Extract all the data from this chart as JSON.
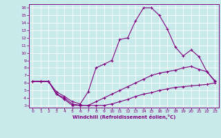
{
  "xlabel": "Windchill (Refroidissement éolien,°C)",
  "xlim": [
    -0.5,
    23.5
  ],
  "ylim": [
    2.7,
    16.5
  ],
  "xticks": [
    0,
    1,
    2,
    3,
    4,
    5,
    6,
    7,
    8,
    9,
    10,
    11,
    12,
    13,
    14,
    15,
    16,
    17,
    18,
    19,
    20,
    21,
    22,
    23
  ],
  "yticks": [
    3,
    4,
    5,
    6,
    7,
    8,
    9,
    10,
    11,
    12,
    13,
    14,
    15,
    16
  ],
  "bg_color": "#c8eaea",
  "grid_color": "#ffffff",
  "line_color": "#800080",
  "line1_x": [
    0,
    1,
    2,
    3,
    4,
    5,
    6,
    7,
    8,
    9,
    10,
    11,
    12,
    13,
    14,
    15,
    16,
    17,
    18,
    19,
    20,
    21,
    22,
    23
  ],
  "line1_y": [
    6.2,
    6.2,
    6.2,
    4.5,
    4.0,
    3.2,
    3.0,
    3.0,
    3.0,
    3.0,
    3.2,
    3.5,
    3.8,
    4.2,
    4.5,
    4.7,
    5.0,
    5.2,
    5.4,
    5.5,
    5.6,
    5.7,
    5.8,
    6.0
  ],
  "line2_x": [
    0,
    1,
    2,
    3,
    4,
    5,
    6,
    7,
    8,
    9,
    10,
    11,
    12,
    13,
    14,
    15,
    16,
    17,
    18,
    19,
    20,
    21,
    22,
    23
  ],
  "line2_y": [
    6.2,
    6.2,
    6.2,
    4.8,
    4.2,
    3.5,
    3.2,
    4.8,
    8.0,
    8.5,
    9.0,
    11.8,
    12.0,
    14.3,
    16.0,
    16.0,
    15.0,
    13.2,
    10.8,
    9.6,
    10.4,
    9.5,
    7.5,
    6.3
  ],
  "line3_x": [
    0,
    1,
    2,
    3,
    4,
    5,
    6,
    7,
    8,
    9,
    10,
    11,
    12,
    13,
    14,
    15,
    16,
    17,
    18,
    19,
    20,
    21,
    22,
    23
  ],
  "line3_y": [
    6.2,
    6.2,
    6.2,
    4.5,
    3.8,
    3.0,
    3.0,
    3.0,
    3.5,
    4.0,
    4.5,
    5.0,
    5.5,
    6.0,
    6.5,
    7.0,
    7.3,
    7.5,
    7.7,
    8.0,
    8.2,
    7.8,
    7.5,
    6.2
  ]
}
